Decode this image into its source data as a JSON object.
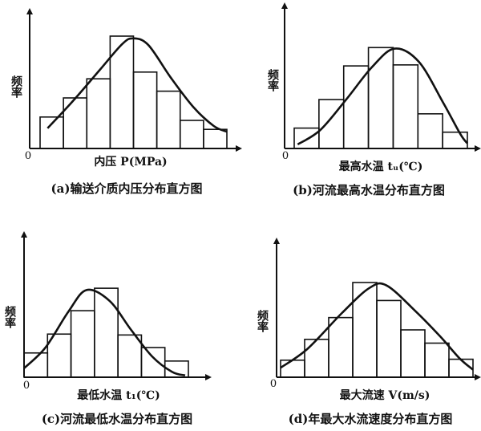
{
  "chart_data": [
    {
      "type": "bar",
      "caption": "(a)输送介质内压分布直方图",
      "xlabel": "内压 P(MPa)",
      "ylabel": "频率",
      "origin_label": "0",
      "values": [
        0.28,
        0.45,
        0.62,
        1.0,
        0.68,
        0.51,
        0.25,
        0.17
      ],
      "curve": [
        [
          0.04,
          0.18
        ],
        [
          0.18,
          0.43
        ],
        [
          0.32,
          0.7
        ],
        [
          0.44,
          0.93
        ],
        [
          0.5,
          0.98
        ],
        [
          0.58,
          0.92
        ],
        [
          0.7,
          0.63
        ],
        [
          0.82,
          0.37
        ],
        [
          0.93,
          0.2
        ],
        [
          1.0,
          0.15
        ]
      ]
    },
    {
      "type": "bar",
      "caption": "(b)河流最高水温分布直方图",
      "xlabel": "最高水温 tᵤ(℃)",
      "ylabel": "频率",
      "origin_label": "0",
      "values": [
        0.2,
        0.48,
        0.81,
        0.99,
        0.82,
        0.34,
        0.16
      ],
      "curve": [
        [
          0.02,
          0.04
        ],
        [
          0.15,
          0.18
        ],
        [
          0.3,
          0.48
        ],
        [
          0.45,
          0.8
        ],
        [
          0.58,
          0.98
        ],
        [
          0.72,
          0.85
        ],
        [
          0.86,
          0.45
        ],
        [
          0.96,
          0.14
        ],
        [
          1.0,
          0.05
        ]
      ]
    },
    {
      "type": "bar",
      "caption": "(c)河流最低水温分布直方图",
      "xlabel": "最低水温 t₁(℃)",
      "ylabel": "频率",
      "origin_label": "0",
      "values": [
        0.27,
        0.48,
        0.74,
        0.99,
        0.47,
        0.33,
        0.18
      ],
      "curve": [
        [
          0.0,
          0.1
        ],
        [
          0.13,
          0.33
        ],
        [
          0.27,
          0.73
        ],
        [
          0.38,
          0.97
        ],
        [
          0.52,
          0.85
        ],
        [
          0.65,
          0.53
        ],
        [
          0.78,
          0.23
        ],
        [
          0.9,
          0.06
        ],
        [
          0.98,
          0.02
        ]
      ]
    },
    {
      "type": "bar",
      "caption": "(d)年最大水流速度分布直方图",
      "xlabel": "最大流速 V(m/s)",
      "ylabel": "频率",
      "origin_label": "0",
      "values": [
        0.18,
        0.4,
        0.63,
        1.0,
        0.81,
        0.5,
        0.36,
        0.19
      ],
      "curve": [
        [
          0.0,
          0.1
        ],
        [
          0.14,
          0.3
        ],
        [
          0.32,
          0.68
        ],
        [
          0.46,
          0.94
        ],
        [
          0.55,
          0.97
        ],
        [
          0.7,
          0.7
        ],
        [
          0.83,
          0.43
        ],
        [
          0.93,
          0.2
        ],
        [
          1.0,
          0.08
        ]
      ]
    }
  ]
}
